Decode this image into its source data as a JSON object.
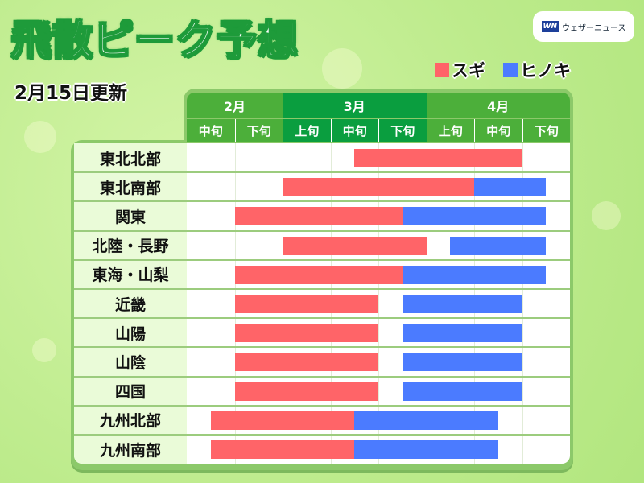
{
  "title": "飛散ピーク予想",
  "updated": "2月15日更新",
  "logo": {
    "mark": "WN",
    "text": "ウェザーニュース"
  },
  "legend": [
    {
      "label": "スギ",
      "color": "#ff6468"
    },
    {
      "label": "ヒノキ",
      "color": "#4b7bff"
    }
  ],
  "colors": {
    "month_feb_apr": "#4caf3a",
    "month_mar": "#0a9e3f"
  },
  "chart_data": {
    "type": "bar",
    "orientation": "horizontal-range",
    "title": "飛散ピーク予想",
    "months": [
      {
        "label": "2月",
        "span": 2
      },
      {
        "label": "3月",
        "span": 3
      },
      {
        "label": "4月",
        "span": 3
      }
    ],
    "periods": [
      "中旬",
      "下旬",
      "上旬",
      "中旬",
      "下旬",
      "上旬",
      "中旬",
      "下旬"
    ],
    "range_units": "period index (0 = 2月中旬 start, 8 = 4月下旬 end)",
    "regions": [
      {
        "name": "東北北部",
        "sugi": [
          3.5,
          7.0
        ],
        "hinoki": null
      },
      {
        "name": "東北南部",
        "sugi": [
          2.0,
          6.0
        ],
        "hinoki": [
          6.0,
          7.5
        ]
      },
      {
        "name": "関東",
        "sugi": [
          1.0,
          4.5
        ],
        "hinoki": [
          4.5,
          7.5
        ]
      },
      {
        "name": "北陸・長野",
        "sugi": [
          2.0,
          5.0
        ],
        "hinoki": [
          5.5,
          7.5
        ]
      },
      {
        "name": "東海・山梨",
        "sugi": [
          1.0,
          4.5
        ],
        "hinoki": [
          4.5,
          7.5
        ]
      },
      {
        "name": "近畿",
        "sugi": [
          1.0,
          4.0
        ],
        "hinoki": [
          4.5,
          7.0
        ]
      },
      {
        "name": "山陽",
        "sugi": [
          1.0,
          4.0
        ],
        "hinoki": [
          4.5,
          7.0
        ]
      },
      {
        "name": "山陰",
        "sugi": [
          1.0,
          4.0
        ],
        "hinoki": [
          4.5,
          7.0
        ]
      },
      {
        "name": "四国",
        "sugi": [
          1.0,
          4.0
        ],
        "hinoki": [
          4.5,
          7.0
        ]
      },
      {
        "name": "九州北部",
        "sugi": [
          0.5,
          3.5
        ],
        "hinoki": [
          3.5,
          6.5
        ]
      },
      {
        "name": "九州南部",
        "sugi": [
          0.5,
          3.5
        ],
        "hinoki": [
          3.5,
          6.5
        ]
      }
    ]
  }
}
